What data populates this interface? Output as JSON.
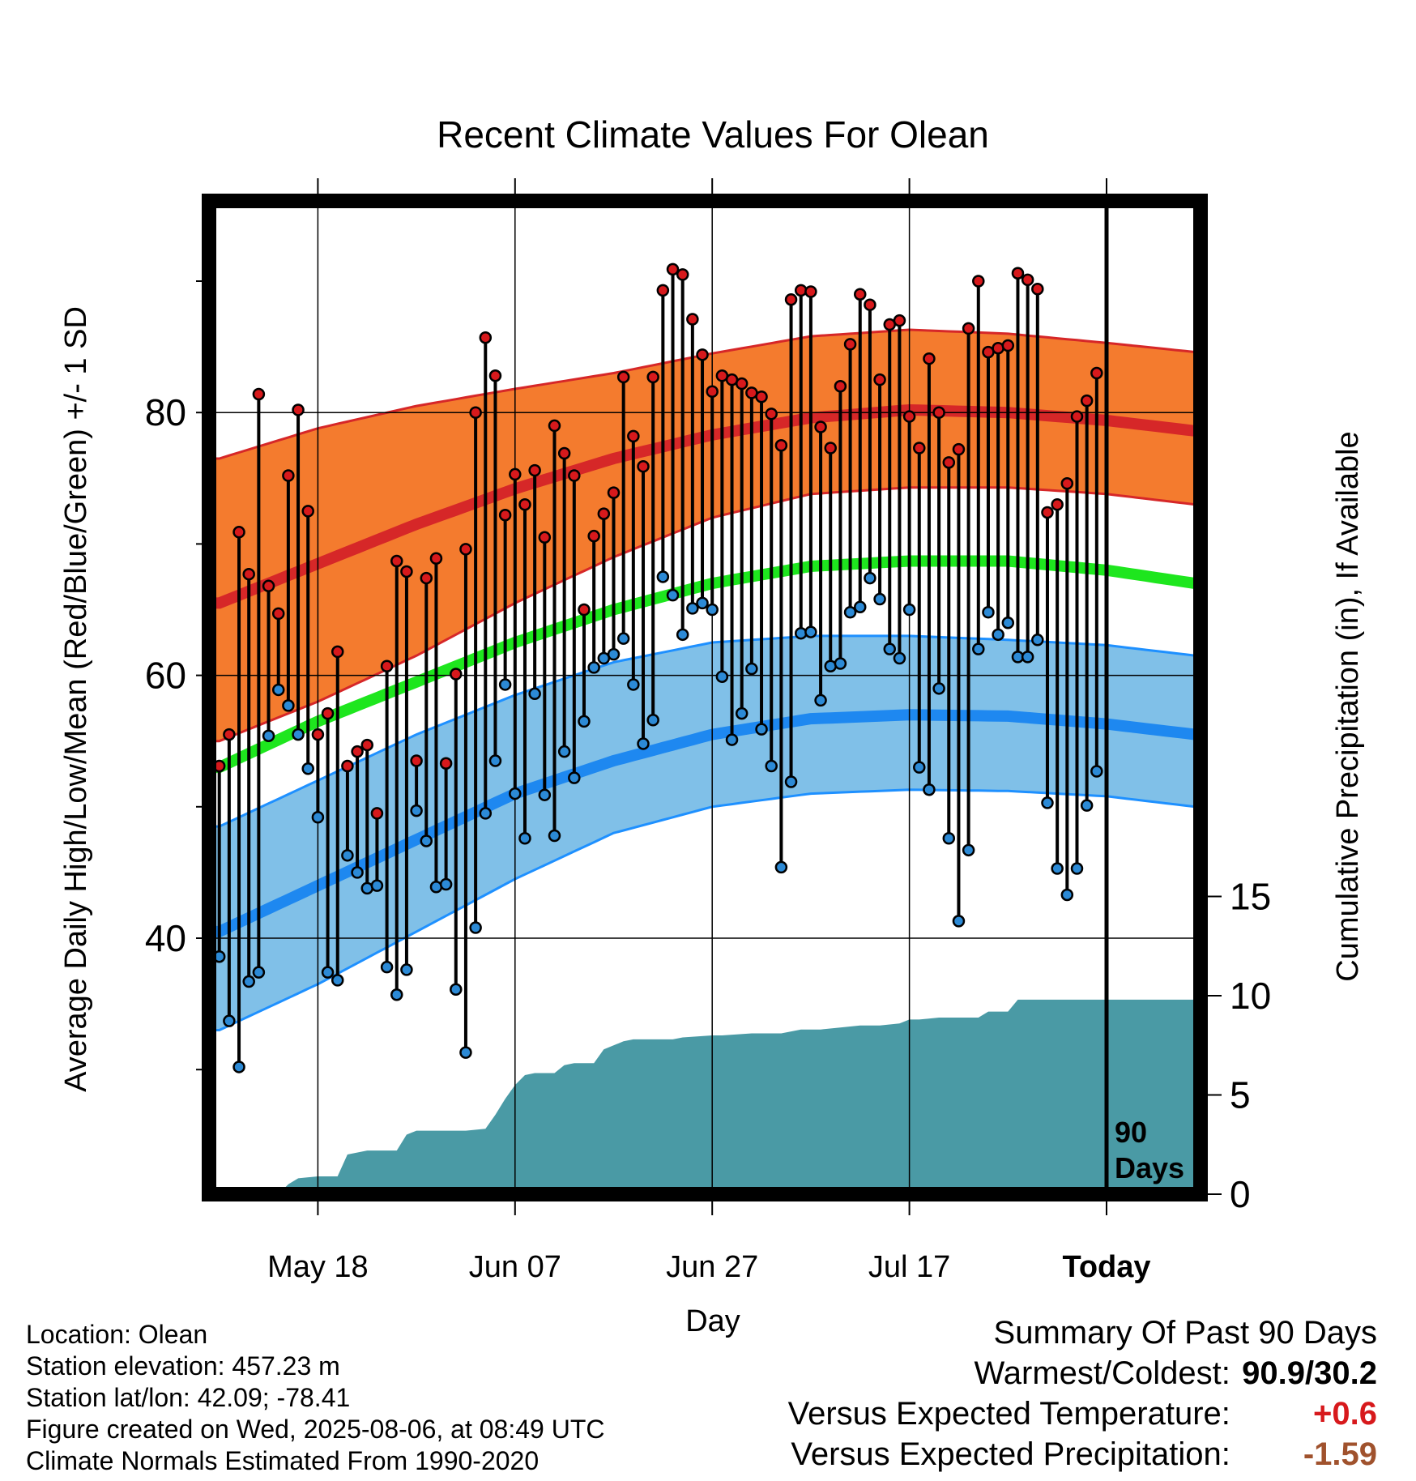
{
  "chart_data": {
    "type": "line",
    "title": "Recent Climate Values For Olean",
    "xlabel": "Day",
    "ylabel": "Average Daily High/Low/Mean (Red/Blue/Green) +/- 1 SD",
    "y2label": "Cumulative Precipitation (in), If Available",
    "x_range_days": [
      -91,
      -1
    ],
    "x_ticks": [
      {
        "day": -80,
        "label": "May 18"
      },
      {
        "day": -60,
        "label": "Jun 07"
      },
      {
        "day": -40,
        "label": "Jun 27"
      },
      {
        "day": -20,
        "label": "Jul 17"
      },
      {
        "day": 0,
        "label": "Today"
      }
    ],
    "ylim": [
      20,
      96
    ],
    "y_ticks": [
      40,
      60,
      80
    ],
    "y_minor_ticks": [
      30,
      50,
      70,
      90
    ],
    "y2lim": [
      0,
      32
    ],
    "y2_ticks": [
      0,
      5,
      10,
      15
    ],
    "grid": true,
    "today_marker": {
      "day": 0,
      "label_line1": "90",
      "label_line2": "Days"
    },
    "normals": {
      "days": [
        -90,
        -80,
        -70,
        -60,
        -50,
        -40,
        -30,
        -20,
        -10,
        0,
        9
      ],
      "high_mean": [
        65.5,
        68.5,
        71.5,
        74.2,
        76.5,
        78.3,
        79.6,
        80.2,
        80.0,
        79.4,
        78.6
      ],
      "high_sd_upper": [
        76.5,
        78.8,
        80.5,
        81.8,
        83.0,
        84.5,
        85.8,
        86.3,
        86.0,
        85.3,
        84.6
      ],
      "high_sd_lower": [
        55.0,
        58.0,
        61.5,
        65.5,
        69.0,
        72.0,
        73.8,
        74.3,
        74.3,
        73.8,
        73.0
      ],
      "mean": [
        53.0,
        56.5,
        59.5,
        62.5,
        65.0,
        67.0,
        68.3,
        68.7,
        68.7,
        68.0,
        67.0
      ],
      "low_mean": [
        40.5,
        44.0,
        47.5,
        51.0,
        53.5,
        55.5,
        56.7,
        57.0,
        56.9,
        56.3,
        55.5
      ],
      "low_sd_upper": [
        48.5,
        52.0,
        55.5,
        58.5,
        61.0,
        62.5,
        63.0,
        63.0,
        62.7,
        62.3,
        61.5
      ],
      "low_sd_lower": [
        33.0,
        36.5,
        40.5,
        44.5,
        48.0,
        50.0,
        51.0,
        51.3,
        51.2,
        50.8,
        50.0
      ]
    },
    "series": [
      {
        "name": "High",
        "color": "#d7191c",
        "days": [
          -90,
          -89,
          -88,
          -87,
          -86,
          -85,
          -84,
          -83,
          -82,
          -81,
          -80,
          -79,
          -78,
          -77,
          -76,
          -75,
          -74,
          -73,
          -72,
          -71,
          -70,
          -69,
          -68,
          -67,
          -66,
          -65,
          -64,
          -63,
          -62,
          -61,
          -60,
          -59,
          -58,
          -57,
          -56,
          -55,
          -54,
          -53,
          -52,
          -51,
          -50,
          -49,
          -48,
          -47,
          -46,
          -45,
          -44,
          -43,
          -42,
          -41,
          -40,
          -39,
          -38,
          -37,
          -36,
          -35,
          -34,
          -33,
          -32,
          -31,
          -30,
          -29,
          -28,
          -27,
          -26,
          -25,
          -24,
          -23,
          -22,
          -21,
          -20,
          -19,
          -18,
          -17,
          -16,
          -15,
          -14,
          -13,
          -12,
          -11,
          -10,
          -9,
          -8,
          -7,
          -6,
          -5,
          -4,
          -3,
          -2,
          -1
        ],
        "values": [
          53.1,
          55.5,
          70.9,
          67.7,
          81.4,
          66.8,
          64.7,
          75.2,
          80.2,
          72.5,
          55.5,
          57.1,
          61.8,
          53.1,
          54.2,
          54.7,
          49.5,
          60.7,
          68.7,
          67.9,
          53.5,
          67.4,
          68.9,
          53.3,
          60.1,
          69.6,
          80.0,
          85.7,
          82.8,
          72.2,
          75.3,
          73.0,
          75.6,
          70.5,
          79.0,
          76.9,
          75.2,
          65.0,
          70.6,
          72.3,
          73.9,
          82.7,
          78.2,
          75.9,
          82.7,
          89.3,
          90.9,
          90.5,
          87.1,
          84.4,
          81.6,
          82.8,
          82.5,
          82.2,
          81.5,
          81.2,
          79.9,
          77.5,
          88.6,
          89.3,
          89.2,
          78.9,
          77.3,
          82.0,
          85.2,
          89.0,
          88.2,
          82.5,
          86.7,
          87.0,
          79.7,
          77.3,
          84.1,
          80.0,
          76.2,
          77.2,
          86.4,
          90.0,
          84.6,
          84.9,
          85.1,
          90.6,
          90.1,
          89.4,
          72.4,
          73.0,
          74.6,
          79.7,
          80.9,
          83.0
        ]
      },
      {
        "name": "Low",
        "color": "#2c7fb8",
        "days": [
          -90,
          -89,
          -88,
          -87,
          -86,
          -85,
          -84,
          -83,
          -82,
          -81,
          -80,
          -79,
          -78,
          -77,
          -76,
          -75,
          -74,
          -73,
          -72,
          -71,
          -70,
          -69,
          -68,
          -67,
          -66,
          -65,
          -64,
          -63,
          -62,
          -61,
          -60,
          -59,
          -58,
          -57,
          -56,
          -55,
          -54,
          -53,
          -52,
          -51,
          -50,
          -49,
          -48,
          -47,
          -46,
          -45,
          -44,
          -43,
          -42,
          -41,
          -40,
          -39,
          -38,
          -37,
          -36,
          -35,
          -34,
          -33,
          -32,
          -31,
          -30,
          -29,
          -28,
          -27,
          -26,
          -25,
          -24,
          -23,
          -22,
          -21,
          -20,
          -19,
          -18,
          -17,
          -16,
          -15,
          -14,
          -13,
          -12,
          -11,
          -10,
          -9,
          -8,
          -7,
          -6,
          -5,
          -4,
          -3,
          -2,
          -1
        ],
        "values": [
          38.6,
          33.7,
          30.2,
          36.7,
          37.4,
          55.4,
          58.9,
          57.7,
          55.5,
          52.9,
          49.2,
          37.4,
          36.8,
          46.3,
          45.0,
          43.8,
          44.0,
          37.8,
          35.7,
          37.6,
          49.7,
          47.4,
          43.9,
          44.1,
          36.1,
          31.3,
          40.8,
          49.5,
          53.5,
          59.3,
          51.0,
          47.6,
          58.6,
          50.9,
          47.8,
          54.2,
          52.2,
          56.5,
          60.6,
          61.3,
          61.6,
          62.8,
          59.3,
          54.8,
          56.6,
          67.5,
          66.1,
          63.1,
          65.1,
          65.5,
          65.0,
          59.9,
          55.1,
          57.1,
          60.5,
          55.9,
          53.1,
          45.4,
          51.9,
          63.2,
          63.3,
          58.1,
          60.7,
          60.9,
          64.8,
          65.2,
          67.4,
          65.8,
          62.0,
          61.3,
          65.0,
          53.0,
          51.3,
          59.0,
          47.6,
          41.3,
          46.7,
          62.0,
          64.8,
          63.1,
          64.0,
          61.4,
          61.4,
          62.7,
          50.3,
          45.3,
          43.3,
          45.3,
          50.1,
          52.7
        ]
      }
    ],
    "precipitation": {
      "days": [
        -90,
        -84,
        -83,
        -82,
        -80,
        -78,
        -77,
        -75,
        -72,
        -71,
        -70,
        -65,
        -63,
        -62,
        -61,
        -60,
        -59,
        -58,
        -56,
        -55,
        -54,
        -52,
        -51,
        -50,
        -49,
        -48,
        -47,
        -44,
        -43,
        -40,
        -39,
        -36,
        -33,
        -32,
        -31,
        -29,
        -27,
        -25,
        -23,
        -21,
        -20,
        -19,
        -17,
        -13,
        -12,
        -10,
        -9,
        -7,
        -6,
        -5,
        -1,
        9
      ],
      "cumulative": [
        0,
        0,
        0.5,
        0.8,
        0.9,
        0.9,
        2.0,
        2.2,
        2.2,
        3.0,
        3.2,
        3.2,
        3.3,
        4.0,
        4.8,
        5.5,
        6.0,
        6.1,
        6.1,
        6.5,
        6.6,
        6.6,
        7.3,
        7.5,
        7.7,
        7.8,
        7.8,
        7.8,
        7.9,
        8.0,
        8.0,
        8.1,
        8.1,
        8.2,
        8.3,
        8.3,
        8.4,
        8.5,
        8.5,
        8.6,
        8.8,
        8.8,
        8.9,
        8.9,
        9.2,
        9.2,
        9.8,
        9.8,
        9.8,
        9.8,
        9.8,
        9.8
      ]
    }
  },
  "info": {
    "location": "Location: Olean",
    "elevation": "Station elevation: 457.23 m",
    "latlon": "Station lat/lon: 42.09; -78.41",
    "created": "Figure created on Wed, 2025-08-06, at 08:49 UTC",
    "normals_note": "Climate Normals Estimated From 1990-2020"
  },
  "summary": {
    "title": "Summary Of Past 90 Days",
    "warmest_label": "Warmest/Coldest:",
    "warmest_value": "90.9/30.2",
    "temp_label": "Versus Expected Temperature:",
    "temp_value": "+0.6",
    "temp_color": "#d7191c",
    "precip_label": "Versus Expected Precipitation:",
    "precip_value": "-1.59",
    "precip_color": "#a0522d"
  },
  "colors": {
    "high_band": "#f47b2e",
    "high_edge": "#d62728",
    "high_line": "#d62728",
    "mean_line": "#1ee61e",
    "low_band": "#80c0e8",
    "low_edge": "#1e90ff",
    "low_line": "#1e88f0",
    "precip_fill": "#4a9aa5",
    "high_dot": "#d7191c",
    "low_dot": "#2c8ad6"
  }
}
